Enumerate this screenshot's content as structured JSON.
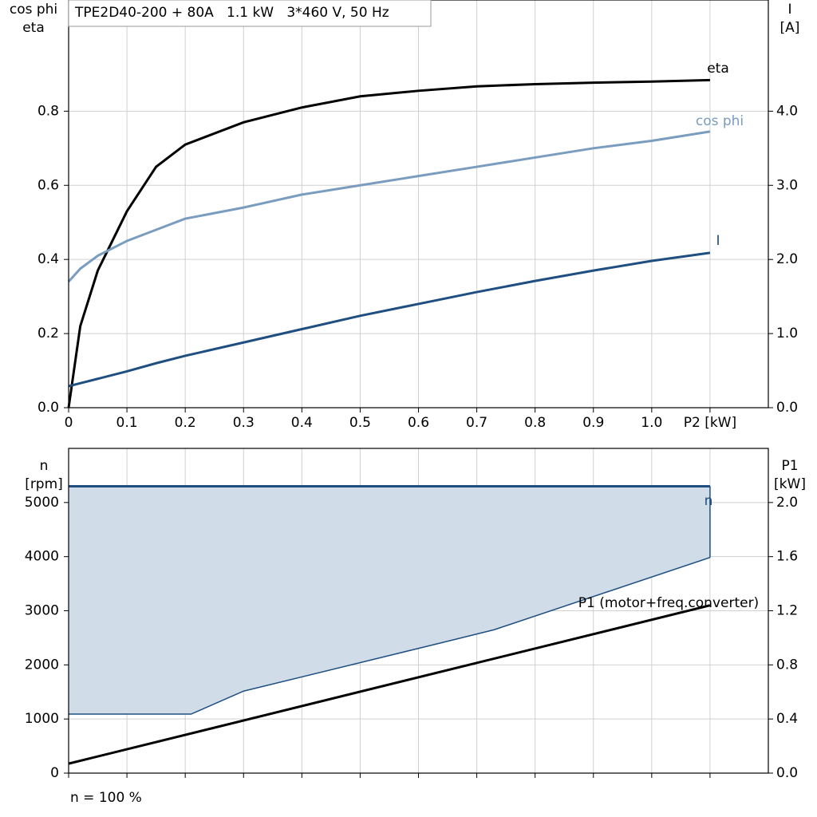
{
  "title": "TPE2D40-200 + 80A   1.1 kW   3*460 V, 50 Hz",
  "footnote": "n = 100 %",
  "chart_data": [
    {
      "type": "line",
      "grid": true,
      "x": [
        0,
        0.02,
        0.05,
        0.1,
        0.15,
        0.2,
        0.3,
        0.4,
        0.5,
        0.6,
        0.7,
        0.8,
        0.9,
        1.0,
        1.1
      ],
      "xlim": [
        0,
        1.2
      ],
      "xticks": [
        0,
        0.1,
        0.2,
        0.3,
        0.4,
        0.5,
        0.6,
        0.7,
        0.8,
        0.9,
        {
          "value": 1.0,
          "label": "1.0"
        },
        {
          "value": 1.1,
          "label": "P2 [kW]"
        }
      ],
      "ylim": [
        0,
        1.1
      ],
      "yticks": [
        {
          "value": 0,
          "label": "0.0"
        },
        0.2,
        0.4,
        0.6,
        0.8
      ],
      "y2lim": [
        0,
        5.5
      ],
      "y2ticks": [
        {
          "value": 0,
          "label": "0.0"
        },
        {
          "value": 1,
          "label": "1.0"
        },
        {
          "value": 2,
          "label": "2.0"
        },
        {
          "value": 3,
          "label": "3.0"
        },
        {
          "value": 4,
          "label": "4.0"
        }
      ],
      "ylabel": [
        "cos phi",
        "eta"
      ],
      "y2label": [
        "I",
        "[A]"
      ],
      "series": [
        {
          "name": "eta",
          "color": "#000000",
          "values": [
            0,
            0.22,
            0.37,
            0.53,
            0.65,
            0.71,
            0.77,
            0.81,
            0.84,
            0.855,
            0.867,
            0.873,
            0.877,
            0.88,
            0.884
          ]
        },
        {
          "name": "cos phi",
          "color": "#7a9cbf",
          "values": [
            0.34,
            0.375,
            0.41,
            0.45,
            0.48,
            0.51,
            0.54,
            0.575,
            0.6,
            0.625,
            0.65,
            0.675,
            0.7,
            0.72,
            0.745
          ]
        },
        {
          "name": "I",
          "color": "#1f4e80",
          "axis": "y2",
          "values": [
            0.29,
            0.33,
            0.39,
            0.49,
            0.6,
            0.7,
            0.88,
            1.06,
            1.24,
            1.4,
            1.56,
            1.71,
            1.85,
            1.98,
            2.09
          ]
        }
      ]
    },
    {
      "type": "line",
      "grid": true,
      "xtick_labels": false,
      "xlim": [
        0,
        1.2
      ],
      "xticks": [
        0,
        0.1,
        0.2,
        0.3,
        0.4,
        0.5,
        0.6,
        0.7,
        0.8,
        0.9,
        1.0,
        1.1
      ],
      "ylim": [
        0,
        6000
      ],
      "yticks": [
        0,
        1000,
        2000,
        3000,
        4000,
        5000
      ],
      "y2lim": [
        0,
        2.4
      ],
      "y2ticks": [
        {
          "value": 0,
          "label": "0.0"
        },
        0.4,
        0.8,
        1.2,
        1.6,
        {
          "value": 2,
          "label": "2.0"
        }
      ],
      "ylabel": [
        "n",
        "[rpm]"
      ],
      "y2label": [
        "P1",
        "[kW]"
      ],
      "series": [
        {
          "name": "n",
          "color": "#1f4e80",
          "x": [
            0,
            1.1
          ],
          "values": [
            5300,
            5300
          ],
          "fill": "#d0dce8",
          "fill_to": 1
        },
        {
          "color": "#1f4e80",
          "x": [
            0,
            0.21,
            0.3,
            0.64,
            0.73,
            1.1
          ],
          "values": [
            1090,
            1090,
            1515,
            2410,
            2650,
            3985
          ]
        },
        {
          "name": "P1 (motor+freq.converter)",
          "color": "#000000",
          "axis": "y2",
          "x": [
            0,
            1.1
          ],
          "values": [
            0.07,
            1.24
          ]
        }
      ]
    }
  ]
}
